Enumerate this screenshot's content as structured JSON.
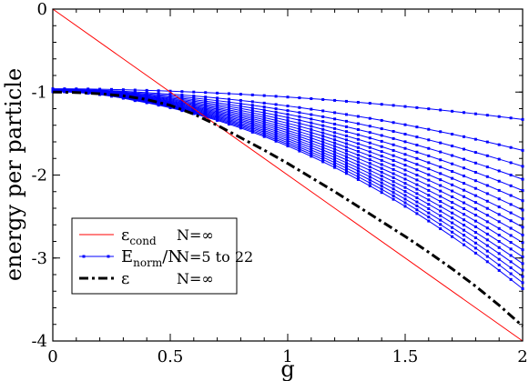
{
  "chart_data": {
    "type": "line",
    "xlabel": "g",
    "ylabel": "energy per particle",
    "xlim": [
      0,
      2
    ],
    "ylim": [
      -4,
      0
    ],
    "xticks": [
      0,
      0.5,
      1,
      1.5,
      2
    ],
    "xtick_labels": [
      "0",
      "0.5",
      "1",
      "1.5",
      "2"
    ],
    "yticks": [
      0,
      -1,
      -2,
      -3,
      -4
    ],
    "ytick_labels": [
      "0",
      "-1",
      "-2",
      "-3",
      "-4"
    ],
    "grid": false,
    "legend_placement": "lower-left",
    "legend": [
      {
        "symbol": "ε",
        "sub": "cond",
        "suffix": "",
        "note": "N=∞",
        "style": "thin-solid",
        "color": "#ff0000"
      },
      {
        "symbol": "E",
        "sub": "norm",
        "suffix": "/N",
        "note": "N=5 to 22",
        "style": "solid-markers",
        "color": "#0000ff"
      },
      {
        "symbol": "ε",
        "sub": "",
        "suffix": "",
        "note": "N=∞",
        "style": "dash-dot",
        "color": "#000000"
      }
    ],
    "series": [
      {
        "id": "eps-cond",
        "color": "#ff0000",
        "x": [
          0,
          2
        ],
        "y": [
          0,
          -4
        ]
      },
      {
        "id": "eps",
        "color": "#000000",
        "x": [
          0,
          0.1,
          0.2,
          0.3,
          0.4,
          0.5,
          0.6,
          0.7,
          0.8,
          0.9,
          1.0,
          1.1,
          1.2,
          1.3,
          1.4,
          1.5,
          1.6,
          1.7,
          1.8,
          1.9,
          2.0
        ],
        "y": [
          -1.0,
          -1.005,
          -1.02,
          -1.045,
          -1.09,
          -1.16,
          -1.265,
          -1.4,
          -1.55,
          -1.7,
          -1.86,
          -2.03,
          -2.2,
          -2.38,
          -2.56,
          -2.74,
          -2.93,
          -3.13,
          -3.34,
          -3.57,
          -3.82
        ]
      }
    ],
    "E_norm": {
      "color": "#0000ff",
      "x": [
        0,
        0.05,
        0.1,
        0.15,
        0.2,
        0.25,
        0.3,
        0.35,
        0.4,
        0.45,
        0.5,
        0.55,
        0.6,
        0.65,
        0.7,
        0.75,
        0.8,
        0.85,
        0.9,
        0.95,
        1.0,
        1.05,
        1.1,
        1.15,
        1.2,
        1.25,
        1.3,
        1.35,
        1.4,
        1.45,
        1.5,
        1.55,
        1.6,
        1.65,
        1.7,
        1.75,
        1.8,
        1.85,
        1.9,
        1.95,
        2.0
      ],
      "N": [
        5,
        6,
        7,
        8,
        9,
        10,
        11,
        12,
        13,
        14,
        15,
        16,
        17,
        18,
        19,
        20,
        21,
        22
      ],
      "curve_N5": {
        "y0": -0.96,
        "y_g1": -1.06,
        "y_g2": -1.33
      },
      "curve_N22": {
        "y0": -0.995,
        "y_g1": -1.65,
        "y_g2": -3.37
      }
    }
  }
}
